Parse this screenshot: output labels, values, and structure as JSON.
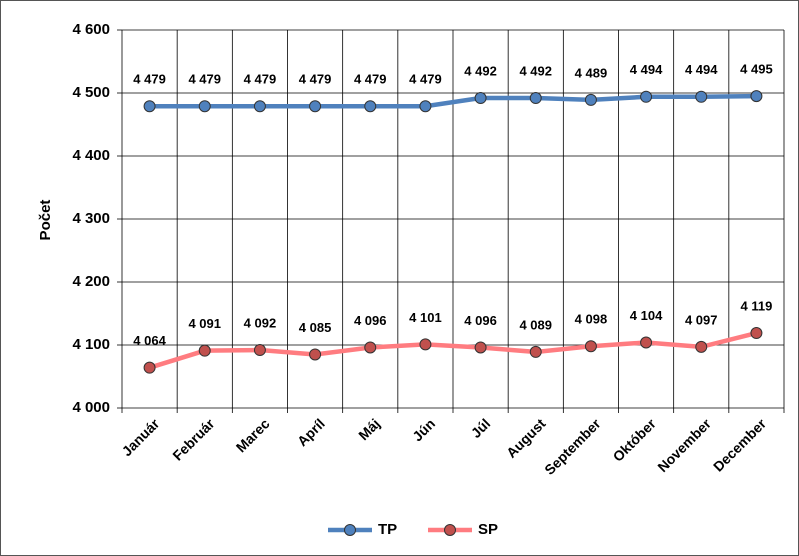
{
  "chart_data": {
    "type": "line",
    "y_label": "Počet",
    "categories": [
      "Január",
      "Február",
      "Marec",
      "Apríl",
      "Máj",
      "Jún",
      "Júl",
      "August",
      "September",
      "Október",
      "November",
      "December"
    ],
    "series": [
      {
        "name": "TP",
        "color": "#4f81bd",
        "marker_color": "#4f81bd",
        "values": [
          4479,
          4479,
          4479,
          4479,
          4479,
          4479,
          4492,
          4492,
          4489,
          4494,
          4494,
          4495
        ],
        "value_labels": [
          "4 479",
          "4 479",
          "4 479",
          "4 479",
          "4 479",
          "4 479",
          "4 492",
          "4 492",
          "4 489",
          "4 494",
          "4 494",
          "4 495"
        ]
      },
      {
        "name": "SP",
        "color": "#ff7c80",
        "marker_color": "#c0504d",
        "values": [
          4064,
          4091,
          4092,
          4085,
          4096,
          4101,
          4096,
          4089,
          4098,
          4104,
          4097,
          4119
        ],
        "value_labels": [
          "4 064",
          "4 091",
          "4 092",
          "4 085",
          "4 096",
          "4 101",
          "4 096",
          "4 089",
          "4 098",
          "4 104",
          "4 097",
          "4 119"
        ]
      }
    ],
    "ylim": [
      4000,
      4600
    ],
    "yticks": [
      {
        "value": 4000,
        "label": "4 000"
      },
      {
        "value": 4100,
        "label": "4 100"
      },
      {
        "value": 4200,
        "label": "4 200"
      },
      {
        "value": 4300,
        "label": "4 300"
      },
      {
        "value": 4400,
        "label": "4 400"
      },
      {
        "value": 4500,
        "label": "4 500"
      },
      {
        "value": 4600,
        "label": "4 600"
      }
    ],
    "grid": true,
    "legend": "bottom"
  }
}
